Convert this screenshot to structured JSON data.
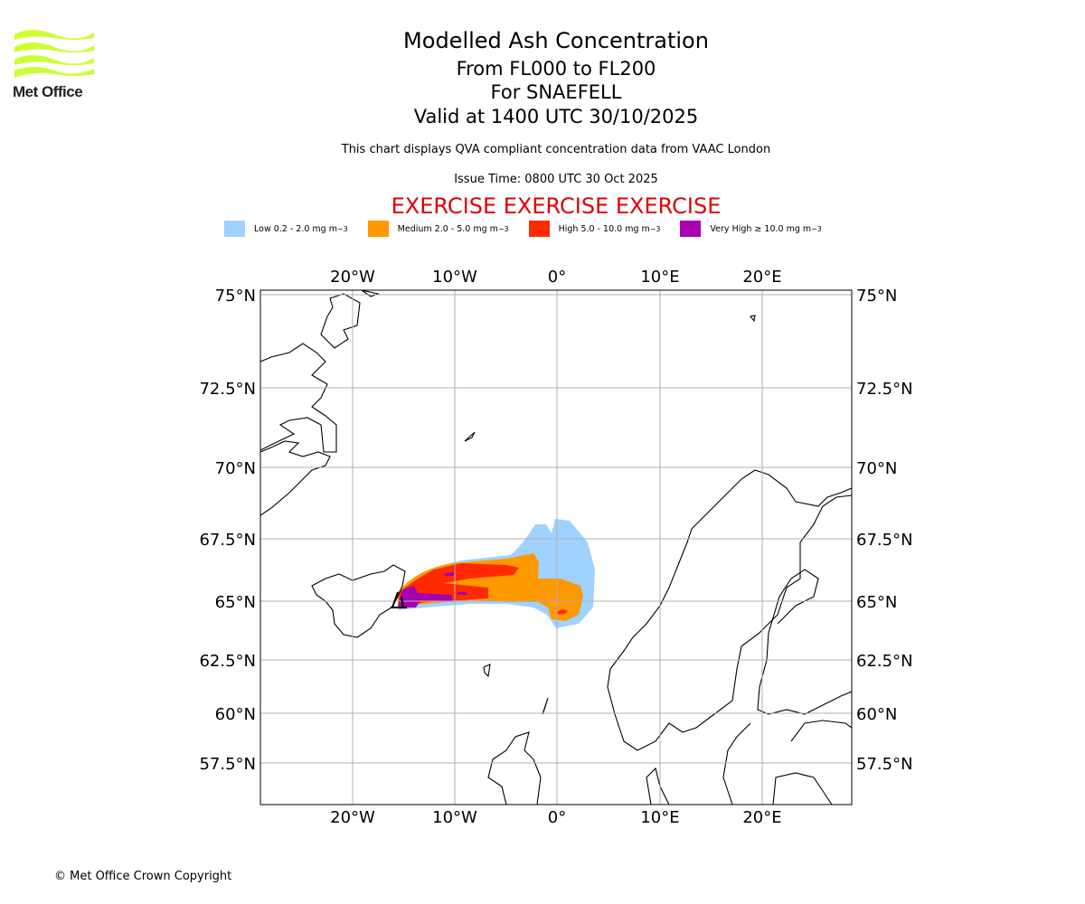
{
  "logo": {
    "text": "Met Office",
    "color": "#ccff33"
  },
  "header": {
    "title": "Modelled Ash Concentration",
    "levels": "From FL000 to FL200",
    "volcano": "For SNAEFELL",
    "valid": "Valid at 1400 UTC 30/10/2025",
    "description": "This chart displays QVA compliant concentration data from VAAC London",
    "issue_time": "Issue Time: 0800 UTC 30 Oct 2025",
    "exercise": "EXERCISE EXERCISE EXERCISE"
  },
  "legend": [
    {
      "label": "Low 0.2 - 2.0 mg m",
      "sup": "−3",
      "color": "#a0d2ff"
    },
    {
      "label": "Medium 2.0 - 5.0 mg m",
      "sup": "−3",
      "color": "#ff9900"
    },
    {
      "label": "High 5.0 - 10.0 mg m",
      "sup": "−3",
      "color": "#ff2a00"
    },
    {
      "label": "Very High  ≥  10.0 mg m",
      "sup": "−3",
      "color": "#a600b0"
    }
  ],
  "map": {
    "lon_ticks": [
      "20°W",
      "10°W",
      "0°",
      "10°E",
      "20°E"
    ],
    "lat_ticks": [
      "75°N",
      "72.5°N",
      "70°N",
      "67.5°N",
      "65°N",
      "62.5°N",
      "60°N",
      "57.5°N"
    ]
  },
  "footer": {
    "copyright": "© Met Office Crown Copyright"
  }
}
